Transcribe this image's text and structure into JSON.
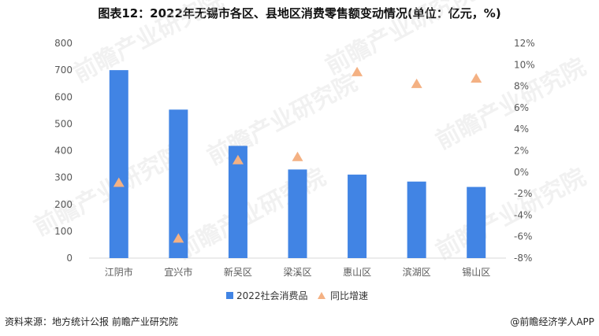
{
  "title": "图表12：2022年无锡市各区、县地区消费零售额变动情况(单位：亿元，%)",
  "footer": {
    "source": "资料来源：地方统计公报 前瞻产业研究院",
    "credit": "@前瞻经济学人APP"
  },
  "watermark": "前瞻产业研究院",
  "colors": {
    "bar": "#4184e4",
    "marker": "#f4b183"
  },
  "chart_data": {
    "type": "bar",
    "categories": [
      "江阴市",
      "宜兴市",
      "新吴区",
      "梁溪区",
      "惠山区",
      "滨湖区",
      "锡山区"
    ],
    "series": [
      {
        "name": "2022社会消费品",
        "type": "bar",
        "axis": "left",
        "values": [
          700,
          553,
          418,
          330,
          311,
          285,
          265
        ]
      },
      {
        "name": "同比增速",
        "type": "scatter",
        "marker": "triangle",
        "axis": "right",
        "values": [
          -1.0,
          -6.2,
          1.1,
          1.4,
          9.3,
          8.2,
          8.7
        ]
      }
    ],
    "y_left": {
      "ylim": [
        0,
        800
      ],
      "ticks": [
        "0",
        "100",
        "200",
        "300",
        "400",
        "500",
        "600",
        "700",
        "800"
      ]
    },
    "y_right": {
      "ylim": [
        -8,
        12
      ],
      "ticks": [
        "-8%",
        "-6%",
        "-4%",
        "-2%",
        "0%",
        "2%",
        "4%",
        "6%",
        "8%",
        "10%",
        "12%"
      ]
    },
    "legend_position": "bottom",
    "grid": false
  }
}
